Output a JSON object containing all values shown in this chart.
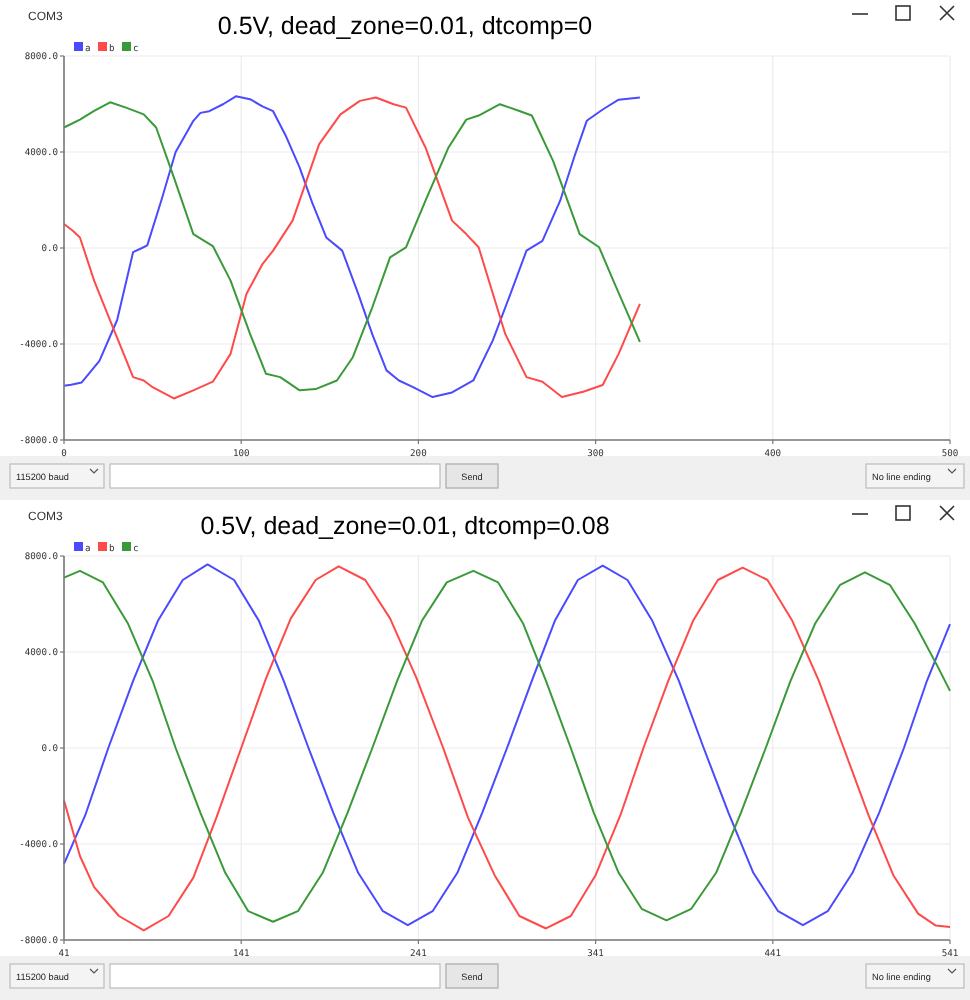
{
  "chart_data": [
    {
      "type": "line",
      "title": "0.5V, dead_zone=0.01, dtcomp=0",
      "annotations": [
        "COM3",
        "115200 baud",
        "Send",
        "No line ending"
      ],
      "xlim": [
        0,
        500
      ],
      "xticks": [
        0,
        100,
        200,
        300,
        400,
        500
      ],
      "ylim": [
        -8000,
        8000
      ],
      "yticks": [
        {
          "value": -8000,
          "label": "-8000.0"
        },
        {
          "value": -4000,
          "label": "-4000.0"
        },
        {
          "value": 0,
          "label": "0.0"
        },
        {
          "value": 4000,
          "label": "4000.0"
        },
        {
          "value": 8000,
          "label": "8000.0"
        }
      ],
      "grid": true,
      "legend": "top left",
      "line_style": "solid",
      "marker": "none",
      "series": [
        {
          "name": "a",
          "color": "#4a4aff",
          "x": [
            0,
            4,
            10,
            20,
            30,
            39,
            44,
            47,
            55,
            63,
            73,
            77,
            82,
            90,
            97,
            105,
            112,
            118,
            125,
            133,
            140,
            148,
            157,
            166,
            174,
            182,
            189,
            197,
            208,
            219,
            231,
            242,
            252,
            261,
            270,
            280,
            288,
            295,
            304,
            313,
            325
          ],
          "values": [
            -5740,
            -5700,
            -5600,
            -4700,
            -3000,
            -170,
            0,
            110,
            2000,
            4000,
            5300,
            5630,
            5700,
            6000,
            6320,
            6200,
            5900,
            5700,
            4700,
            3350,
            1900,
            440,
            -110,
            -1900,
            -3600,
            -5100,
            -5520,
            -5800,
            -6210,
            -6020,
            -5520,
            -3850,
            -1900,
            -110,
            300,
            1970,
            3800,
            5300,
            5770,
            6180,
            6270
          ]
        },
        {
          "name": "b",
          "color": "#ff4a4a",
          "x": [
            0,
            5,
            9,
            17,
            26,
            39,
            45,
            50,
            62,
            73,
            84,
            94,
            103,
            112,
            118,
            129,
            144,
            156,
            167,
            176,
            186,
            193,
            204,
            219,
            227,
            234,
            249,
            261,
            270,
            281,
            293,
            304,
            313,
            325
          ],
          "values": [
            1000,
            720,
            440,
            -1360,
            -3020,
            -5380,
            -5520,
            -5800,
            -6270,
            -5930,
            -5570,
            -4410,
            -1910,
            -670,
            -110,
            1140,
            4330,
            5570,
            6130,
            6270,
            5990,
            5850,
            4190,
            1140,
            580,
            30,
            -3580,
            -5380,
            -5570,
            -6210,
            -5990,
            -5710,
            -4410,
            -2330
          ]
        },
        {
          "name": "c",
          "color": "#3a9a3a",
          "x": [
            0,
            9,
            17,
            26,
            35,
            45,
            52,
            62,
            73,
            84,
            94,
            105,
            114,
            122,
            133,
            142,
            154,
            163,
            174,
            184,
            193,
            204,
            217,
            227,
            234,
            246,
            257,
            264,
            276,
            291,
            302,
            310,
            325
          ],
          "values": [
            5020,
            5350,
            5710,
            6070,
            5850,
            5570,
            5020,
            2940,
            580,
            80,
            -1360,
            -3580,
            -5240,
            -5380,
            -5930,
            -5880,
            -5520,
            -4550,
            -2470,
            -390,
            30,
            1970,
            4190,
            5350,
            5520,
            5990,
            5710,
            5520,
            3630,
            580,
            30,
            -1360,
            -3910
          ]
        }
      ]
    },
    {
      "type": "line",
      "title": "0.5V, dead_zone=0.01, dtcomp=0.08",
      "annotations": [
        "COM3",
        "115200 baud",
        "Send",
        "No line ending"
      ],
      "xlim": [
        41,
        541
      ],
      "xticks": [
        41,
        141,
        241,
        341,
        441,
        541
      ],
      "ylim": [
        -8000,
        8000
      ],
      "yticks": [
        {
          "value": -8000,
          "label": "-8000.0"
        },
        {
          "value": -4000,
          "label": "-4000.0"
        },
        {
          "value": 0,
          "label": "0.0"
        },
        {
          "value": 4000,
          "label": "4000.0"
        },
        {
          "value": 8000,
          "label": "8000.0"
        }
      ],
      "grid": true,
      "legend": "top left",
      "line_style": "solid",
      "marker": "none",
      "series": [
        {
          "name": "a",
          "color": "#4a4aff",
          "x": [
            41,
            53,
            66,
            80,
            94,
            108,
            122,
            137,
            151,
            165,
            179,
            193,
            207,
            221,
            235,
            249,
            263,
            277,
            291,
            305,
            318,
            331,
            345,
            359,
            373,
            388,
            402,
            416,
            430,
            444,
            458,
            472,
            486,
            501,
            515,
            528,
            541
          ],
          "values": [
            -4830,
            -2800,
            0,
            2800,
            5300,
            7000,
            7650,
            7000,
            5300,
            2800,
            0,
            -2700,
            -5200,
            -6800,
            -7380,
            -6800,
            -5200,
            -2700,
            0,
            2800,
            5300,
            7000,
            7600,
            7000,
            5300,
            2800,
            0,
            -2700,
            -5200,
            -6800,
            -7380,
            -6800,
            -5200,
            -2700,
            0,
            2800,
            5160
          ]
        },
        {
          "name": "b",
          "color": "#ff4a4a",
          "x": [
            41,
            50,
            58,
            72,
            86,
            100,
            114,
            127,
            141,
            155,
            169,
            183,
            196,
            211,
            225,
            240,
            255,
            269,
            284,
            298,
            313,
            327,
            341,
            355,
            368,
            382,
            396,
            410,
            424,
            438,
            452,
            467,
            481,
            495,
            509,
            523,
            533,
            541
          ],
          "values": [
            -2190,
            -4500,
            -5800,
            -7000,
            -7600,
            -7000,
            -5400,
            -2900,
            0,
            2900,
            5400,
            7000,
            7570,
            7000,
            5400,
            2900,
            0,
            -2900,
            -5300,
            -7000,
            -7520,
            -7000,
            -5300,
            -2800,
            0,
            2800,
            5300,
            7000,
            7520,
            7000,
            5300,
            2800,
            0,
            -2800,
            -5300,
            -6900,
            -7400,
            -7460
          ]
        },
        {
          "name": "c",
          "color": "#3a9a3a",
          "x": [
            41,
            50,
            63,
            77,
            91,
            104,
            118,
            132,
            145,
            159,
            173,
            187,
            201,
            215,
            229,
            243,
            257,
            272,
            286,
            300,
            313,
            327,
            340,
            354,
            367,
            381,
            395,
            409,
            423,
            437,
            451,
            465,
            479,
            493,
            507,
            521,
            534,
            541
          ],
          "values": [
            7100,
            7380,
            6900,
            5200,
            2800,
            0,
            -2700,
            -5200,
            -6800,
            -7240,
            -6800,
            -5200,
            -2700,
            0,
            2800,
            5300,
            6900,
            7380,
            6900,
            5200,
            2800,
            0,
            -2700,
            -5200,
            -6700,
            -7180,
            -6700,
            -5200,
            -2700,
            0,
            2800,
            5200,
            6800,
            7320,
            6800,
            5200,
            3400,
            2380
          ]
        }
      ]
    }
  ]
}
